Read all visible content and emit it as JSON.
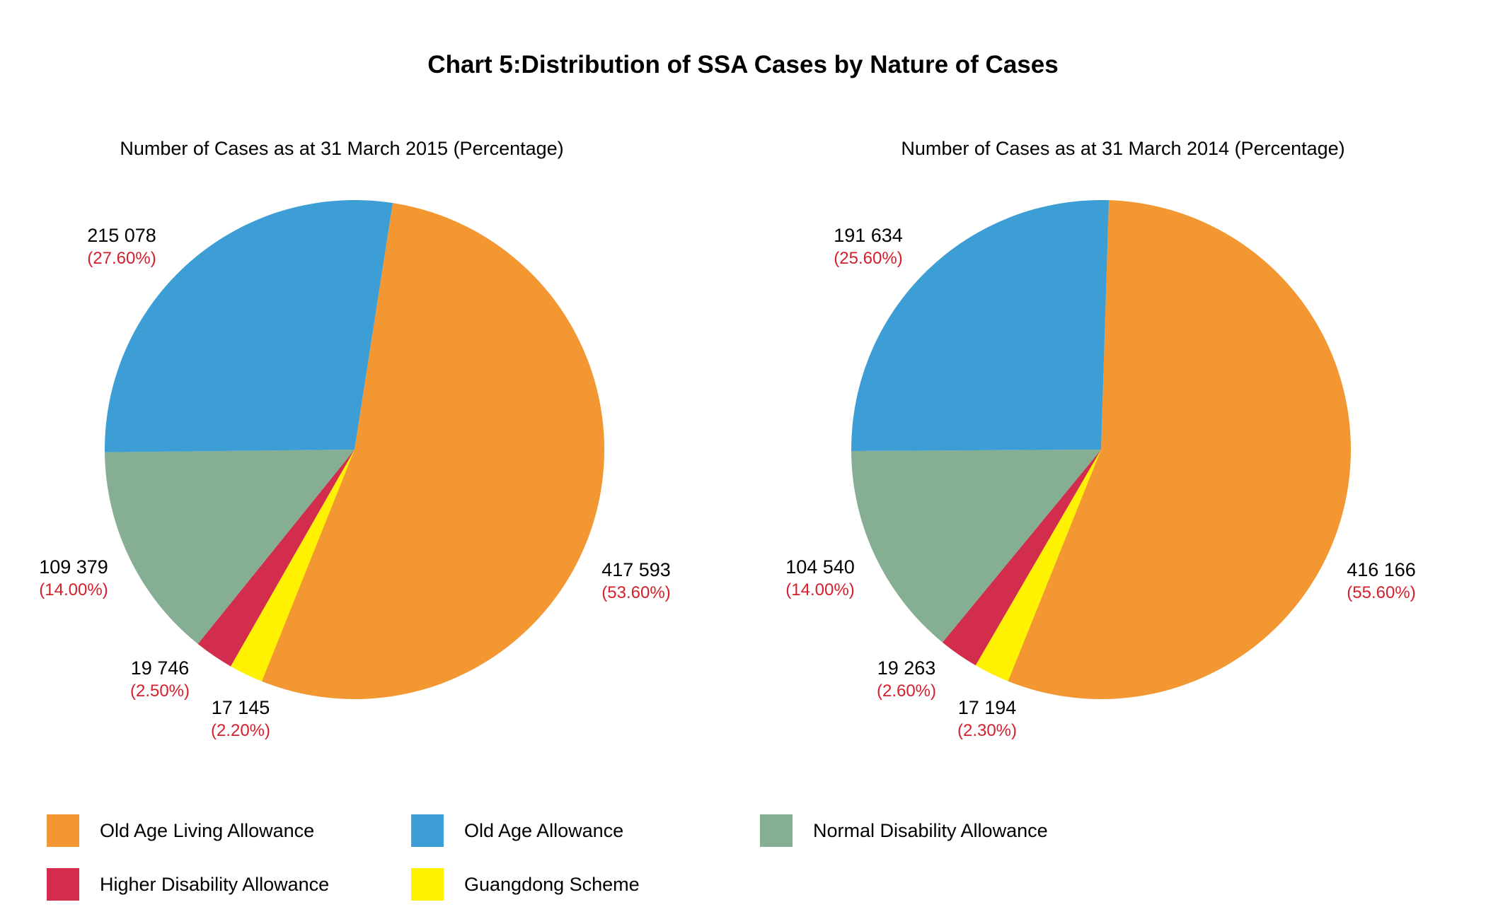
{
  "chart_data": [
    {
      "type": "pie",
      "title": "Chart 5:Distribution of SSA Cases by Nature of Cases",
      "subtitle": "Number of Cases as at 31 March 2015 (Percentage)",
      "start_angle_deg": 8.8,
      "direction": "clockwise",
      "slices": [
        {
          "key": "oala",
          "name": "Old Age Living Allowance",
          "value": 417593,
          "value_label": "417 593",
          "percent": 53.6,
          "percent_label": "(53.60%)"
        },
        {
          "key": "gd",
          "name": "Guangdong Scheme",
          "value": 17145,
          "value_label": "17 145",
          "percent": 2.2,
          "percent_label": "(2.20%)"
        },
        {
          "key": "hda",
          "name": "Higher Disability Allowance",
          "value": 19746,
          "value_label": "19 746",
          "percent": 2.5,
          "percent_label": "(2.50%)"
        },
        {
          "key": "nda",
          "name": "Normal Disability Allowance",
          "value": 109379,
          "value_label": "109 379",
          "percent": 14.0,
          "percent_label": "(14.00%)"
        },
        {
          "key": "oaa",
          "name": "Old Age Allowance",
          "value": 215078,
          "value_label": "215 078",
          "percent": 27.6,
          "percent_label": "(27.60%)"
        }
      ]
    },
    {
      "type": "pie",
      "title": "Chart 5:Distribution of SSA Cases by Nature of Cases",
      "subtitle": "Number of Cases as at 31 March 2014 (Percentage)",
      "start_angle_deg": 1.8,
      "direction": "clockwise",
      "slices": [
        {
          "key": "oala",
          "name": "Old Age Living Allowance",
          "value": 416166,
          "value_label": "416 166",
          "percent": 55.6,
          "percent_label": "(55.60%)"
        },
        {
          "key": "gd",
          "name": "Guangdong Scheme",
          "value": 17194,
          "value_label": "17 194",
          "percent": 2.3,
          "percent_label": "(2.30%)"
        },
        {
          "key": "hda",
          "name": "Higher Disability Allowance",
          "value": 19263,
          "value_label": "19 263",
          "percent": 2.6,
          "percent_label": "(2.60%)"
        },
        {
          "key": "nda",
          "name": "Normal Disability Allowance",
          "value": 104540,
          "value_label": "104 540",
          "percent": 14.0,
          "percent_label": "(14.00%)"
        },
        {
          "key": "oaa",
          "name": "Old Age Allowance",
          "value": 191634,
          "value_label": "191 634",
          "percent": 25.6,
          "percent_label": "(25.60%)"
        }
      ]
    }
  ],
  "title": "Chart 5:Distribution of SSA Cases by Nature of Cases",
  "subtitles": {
    "left": "Number of Cases as at 31 March 2015 (Percentage)",
    "right": "Number of Cases as at 31 March 2014 (Percentage)"
  },
  "colors": {
    "oala": "#F39733",
    "oaa": "#3D9ED5",
    "nda": "#86AE92",
    "hda": "#D22D4C",
    "gd": "#FFF200",
    "percent_text": "#D4202C"
  },
  "legend": [
    {
      "key": "oala",
      "label": "Old Age Living Allowance"
    },
    {
      "key": "oaa",
      "label": "Old Age Allowance"
    },
    {
      "key": "nda",
      "label": "Normal Disability Allowance"
    },
    {
      "key": "hda",
      "label": "Higher Disability Allowance"
    },
    {
      "key": "gd",
      "label": "Guangdong Scheme"
    }
  ],
  "legend_position": "bottom"
}
